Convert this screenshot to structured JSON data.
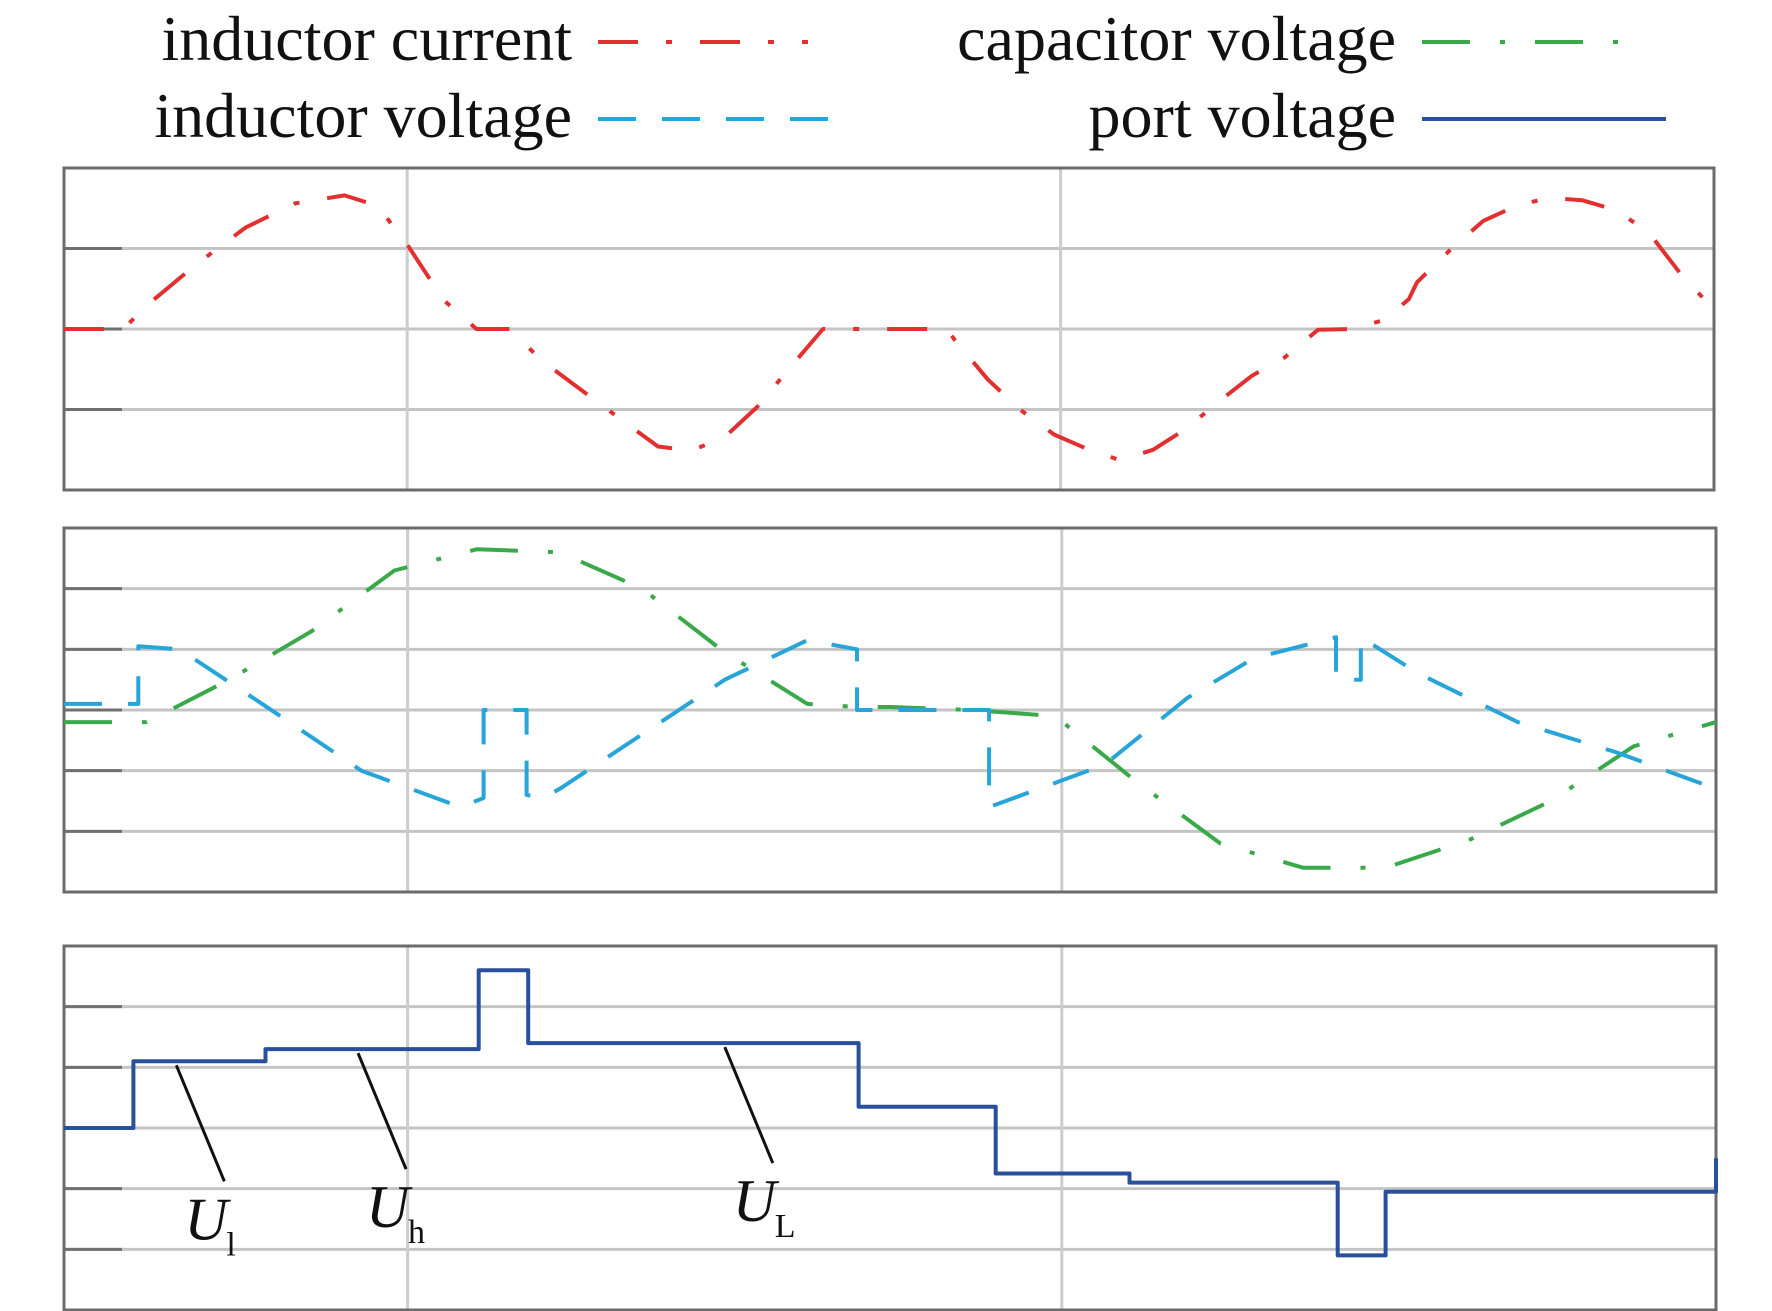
{
  "colors": {
    "inductor_current": "#e1302f",
    "capacitor_voltage": "#3aa94a",
    "inductor_voltage": "#27a4d8",
    "port_voltage": "#2a4f9d",
    "grid": "#c4c4c4",
    "frame": "#6b6b6b"
  },
  "legend": [
    {
      "label": "inductor current",
      "series": "inductor_current",
      "dash": "dash-dot"
    },
    {
      "label": "capacitor voltage",
      "series": "capacitor_voltage",
      "dash": "long-dash-dot"
    },
    {
      "label": "inductor voltage",
      "series": "inductor_voltage",
      "dash": "dashed"
    },
    {
      "label": "port voltage",
      "series": "port_voltage",
      "dash": "solid"
    }
  ],
  "chart_data": [
    {
      "type": "line",
      "panel": "top",
      "title": "",
      "xlabel": "",
      "ylabel": "",
      "xlim": [
        0,
        1
      ],
      "ylim": [
        -2,
        2
      ],
      "grid": true,
      "vertical_grid_x": [
        0.208,
        0.604
      ],
      "series": [
        {
          "name": "inductor current",
          "color_key": "inductor_current",
          "dash": "dash-dot",
          "x": [
            0.0,
            0.036,
            0.05,
            0.08,
            0.11,
            0.14,
            0.17,
            0.19,
            0.208,
            0.23,
            0.25,
            0.27,
            0.29,
            0.34,
            0.36,
            0.38,
            0.4,
            0.42,
            0.44,
            0.46,
            0.48,
            0.5,
            0.52,
            0.535,
            0.54,
            0.56,
            0.58,
            0.6,
            0.62,
            0.64,
            0.66,
            0.68,
            0.7,
            0.72,
            0.74,
            0.76,
            0.78,
            0.8,
            0.815,
            0.82,
            0.84,
            0.86,
            0.88,
            0.9,
            0.92,
            0.94,
            0.96,
            0.98,
            1.0
          ],
          "y": [
            0.0,
            0.0,
            0.29,
            0.8,
            1.26,
            1.56,
            1.66,
            1.53,
            1.05,
            0.36,
            0.0,
            0.0,
            -0.4,
            -1.16,
            -1.46,
            -1.51,
            -1.35,
            -0.97,
            -0.48,
            0.0,
            0.0,
            0.0,
            0.0,
            0.0,
            -0.14,
            -0.63,
            -1.01,
            -1.31,
            -1.49,
            -1.63,
            -1.5,
            -1.24,
            -0.9,
            -0.58,
            -0.35,
            -0.01,
            0.0,
            0.11,
            0.37,
            0.58,
            0.98,
            1.34,
            1.53,
            1.63,
            1.6,
            1.48,
            1.21,
            0.68,
            0.24
          ]
        }
      ]
    },
    {
      "type": "line",
      "panel": "middle",
      "title": "",
      "xlabel": "",
      "ylabel": "",
      "xlim": [
        0,
        1
      ],
      "ylim": [
        -3,
        3
      ],
      "grid": true,
      "vertical_grid_x": [
        0.208,
        0.604
      ],
      "series": [
        {
          "name": "capacitor voltage",
          "color_key": "capacitor_voltage",
          "dash": "long-dash-dot",
          "x": [
            0.0,
            0.05,
            0.1,
            0.15,
            0.2,
            0.25,
            0.3,
            0.35,
            0.4,
            0.45,
            0.48,
            0.5,
            0.55,
            0.6,
            0.65,
            0.7,
            0.75,
            0.8,
            0.85,
            0.9,
            0.95,
            1.0
          ],
          "y": [
            -0.2,
            -0.2,
            0.5,
            1.3,
            2.3,
            2.65,
            2.6,
            2.0,
            0.95,
            0.1,
            0.05,
            0.05,
            0.0,
            -0.1,
            -1.2,
            -2.2,
            -2.6,
            -2.6,
            -2.15,
            -1.5,
            -0.6,
            -0.2
          ]
        },
        {
          "name": "inductor voltage",
          "color_key": "inductor_voltage",
          "dash": "dashed",
          "x": [
            0.0,
            0.045,
            0.045,
            0.07,
            0.12,
            0.18,
            0.24,
            0.254,
            0.254,
            0.28,
            0.28,
            0.29,
            0.3,
            0.35,
            0.4,
            0.45,
            0.48,
            0.48,
            0.504,
            0.56,
            0.56,
            0.59,
            0.63,
            0.68,
            0.72,
            0.77,
            0.77,
            0.785,
            0.785,
            0.82,
            0.88,
            0.94,
            1.0
          ],
          "y": [
            0.1,
            0.1,
            1.05,
            1.0,
            0.1,
            -1.0,
            -1.6,
            -1.45,
            0.0,
            0.0,
            -1.4,
            -1.45,
            -1.3,
            -0.4,
            0.5,
            1.15,
            1.0,
            0.0,
            0.0,
            0.0,
            -1.6,
            -1.3,
            -0.9,
            0.2,
            0.85,
            1.2,
            0.5,
            0.5,
            1.2,
            0.6,
            -0.2,
            -0.7,
            -1.3
          ]
        }
      ]
    },
    {
      "type": "line",
      "panel": "bottom",
      "title": "",
      "xlabel": "",
      "ylabel": "",
      "xlim": [
        0,
        1
      ],
      "ylim": [
        -3,
        3
      ],
      "grid": true,
      "vertical_grid_x": [
        0.208,
        0.604
      ],
      "series": [
        {
          "name": "port voltage",
          "color_key": "port_voltage",
          "dash": "solid",
          "x": [
            0.0,
            0.042,
            0.042,
            0.122,
            0.122,
            0.251,
            0.251,
            0.281,
            0.281,
            0.481,
            0.481,
            0.564,
            0.564,
            0.645,
            0.645,
            0.771,
            0.771,
            0.8,
            0.8,
            1.0,
            1.0
          ],
          "y": [
            0.0,
            0.0,
            1.1,
            1.1,
            1.3,
            1.3,
            2.6,
            2.6,
            1.4,
            1.4,
            0.35,
            0.35,
            -0.75,
            -0.75,
            -0.9,
            -0.9,
            -2.1,
            -2.1,
            -1.05,
            -1.05,
            -0.5
          ]
        }
      ],
      "annotations": [
        {
          "text": "U",
          "subscript": "l",
          "x": 0.068,
          "y": 1.1
        },
        {
          "text": "U",
          "subscript": "h",
          "x": 0.178,
          "y": 1.3
        },
        {
          "text": "U",
          "subscript": "L",
          "x": 0.4,
          "y": 1.4
        }
      ]
    }
  ]
}
